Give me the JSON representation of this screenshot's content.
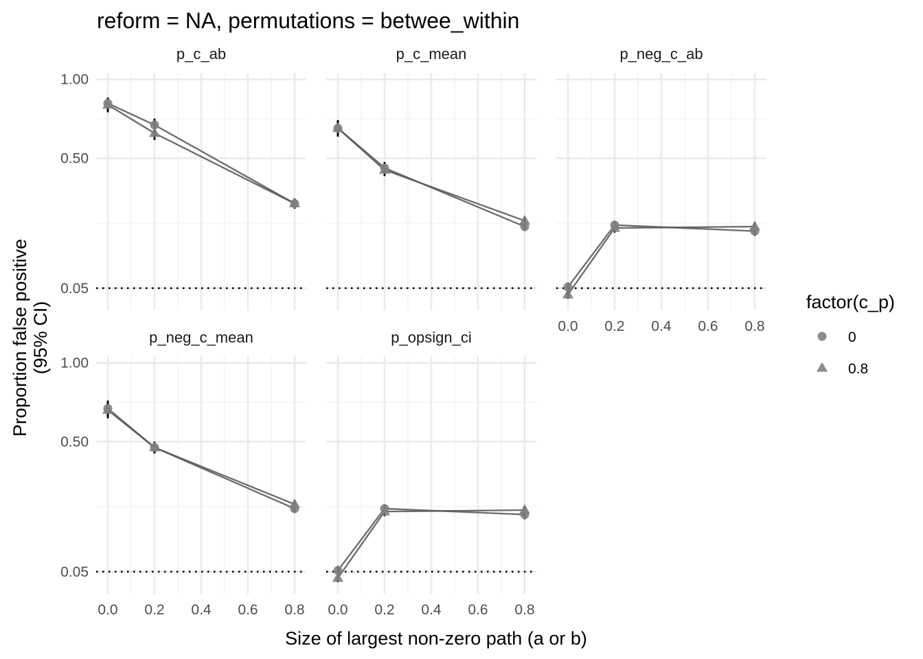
{
  "chart_data": {
    "type": "line",
    "title": "reform = NA, permutations = betwee_within",
    "xlabel": "Size of largest non-zero path (a or b)",
    "ylabel_lines": [
      "Proportion false positive",
      "(95% CI)"
    ],
    "y_scale": "sqrt",
    "ylim": [
      0.02,
      1.05
    ],
    "xlim": [
      -0.05,
      0.85
    ],
    "x_ticks": [
      0.0,
      0.2,
      0.4,
      0.6,
      0.8
    ],
    "x_tick_labels": [
      "0.0",
      "0.2",
      "0.4",
      "0.6",
      "0.8"
    ],
    "y_ticks": [
      0.05,
      0.5,
      1.0
    ],
    "y_tick_labels": [
      "0.05",
      "0.50",
      "1.00"
    ],
    "reference_line": 0.05,
    "grid": true,
    "legend": {
      "title": "factor(c_p)",
      "placement": "right",
      "entries": [
        {
          "label": "0",
          "shape": "circle"
        },
        {
          "label": "0.8",
          "shape": "triangle"
        }
      ]
    },
    "panels": [
      {
        "strip": "p_c_ab",
        "series": [
          {
            "name": "0",
            "shape": "circle",
            "x": [
              0.0,
              0.2,
              0.8
            ],
            "y": [
              0.83,
              0.69,
              0.29
            ],
            "ci": [
              [
                0.78,
                0.87
              ],
              [
                0.65,
                0.73
              ],
              [
                0.27,
                0.31
              ]
            ]
          },
          {
            "name": "0.8",
            "shape": "triangle",
            "x": [
              0.0,
              0.2,
              0.8
            ],
            "y": [
              0.82,
              0.64,
              0.29
            ],
            "ci": [
              [
                0.77,
                0.86
              ],
              [
                0.6,
                0.68
              ],
              [
                0.27,
                0.31
              ]
            ]
          }
        ]
      },
      {
        "strip": "p_c_mean",
        "series": [
          {
            "name": "0",
            "shape": "circle",
            "x": [
              0.0,
              0.2,
              0.8
            ],
            "y": [
              0.67,
              0.45,
              0.205
            ],
            "ci": [
              [
                0.62,
                0.72
              ],
              [
                0.42,
                0.48
              ],
              [
                0.19,
                0.22
              ]
            ]
          },
          {
            "name": "0.8",
            "shape": "triangle",
            "x": [
              0.0,
              0.2,
              0.8
            ],
            "y": [
              0.67,
              0.44,
              0.225
            ],
            "ci": [
              [
                0.62,
                0.72
              ],
              [
                0.41,
                0.47
              ],
              [
                0.21,
                0.24
              ]
            ]
          }
        ]
      },
      {
        "strip": "p_neg_c_ab",
        "series": [
          {
            "name": "0",
            "shape": "circle",
            "x": [
              0.0,
              0.2,
              0.8
            ],
            "y": [
              0.052,
              0.21,
              0.19
            ],
            "ci": [
              [
                0.045,
                0.06
              ],
              [
                0.195,
                0.225
              ],
              [
                0.175,
                0.205
              ]
            ]
          },
          {
            "name": "0.8",
            "shape": "triangle",
            "x": [
              0.0,
              0.2,
              0.8
            ],
            "y": [
              0.04,
              0.2,
              0.205
            ],
            "ci": [
              [
                0.034,
                0.047
              ],
              [
                0.185,
                0.215
              ],
              [
                0.19,
                0.22
              ]
            ]
          }
        ]
      },
      {
        "strip": "p_neg_c_mean",
        "series": [
          {
            "name": "0",
            "shape": "circle",
            "x": [
              0.0,
              0.2,
              0.8
            ],
            "y": [
              0.69,
              0.47,
              0.21
            ],
            "ci": [
              [
                0.64,
                0.74
              ],
              [
                0.44,
                0.5
              ],
              [
                0.195,
                0.225
              ]
            ]
          },
          {
            "name": "0.8",
            "shape": "triangle",
            "x": [
              0.0,
              0.2,
              0.8
            ],
            "y": [
              0.68,
              0.47,
              0.225
            ],
            "ci": [
              [
                0.63,
                0.73
              ],
              [
                0.44,
                0.5
              ],
              [
                0.21,
                0.24
              ]
            ]
          }
        ]
      },
      {
        "strip": "p_opsign_ci",
        "series": [
          {
            "name": "0",
            "shape": "circle",
            "x": [
              0.0,
              0.2,
              0.8
            ],
            "y": [
              0.052,
              0.21,
              0.19
            ],
            "ci": [
              [
                0.045,
                0.06
              ],
              [
                0.195,
                0.225
              ],
              [
                0.175,
                0.205
              ]
            ]
          },
          {
            "name": "0.8",
            "shape": "triangle",
            "x": [
              0.0,
              0.2,
              0.8
            ],
            "y": [
              0.04,
              0.2,
              0.205
            ],
            "ci": [
              [
                0.034,
                0.047
              ],
              [
                0.185,
                0.215
              ],
              [
                0.19,
                0.22
              ]
            ]
          }
        ]
      }
    ]
  }
}
